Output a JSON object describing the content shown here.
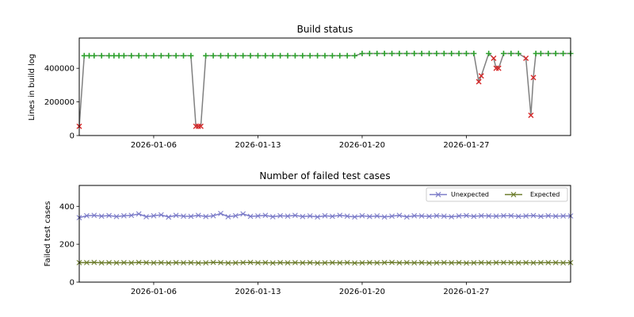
{
  "chart_data": [
    {
      "type": "line",
      "title": "Build status",
      "xlabel": "",
      "ylabel": "Lines in build log",
      "ylim": [
        0,
        580000
      ],
      "xlim": [
        "2026-01-01",
        "2026-02-03"
      ],
      "xticks": [
        "2026-01-06",
        "2026-01-13",
        "2026-01-20",
        "2026-01-27"
      ],
      "yticks": [
        0,
        200000,
        400000
      ],
      "ytick_labels": [
        "0",
        "200000",
        "400000"
      ],
      "grid": false,
      "legend": null,
      "line_color": "#808080",
      "status_colors": {
        "pass": "#2ca02c",
        "fail": "#d62728"
      },
      "series": [
        {
          "x": [
            "2026-01-01T00:00",
            "2026-01-01T08:00",
            "2026-01-01T16:00",
            "2026-01-02T00:00",
            "2026-01-02T12:00",
            "2026-01-03T00:00",
            "2026-01-03T08:00",
            "2026-01-03T16:00",
            "2026-01-04T00:00",
            "2026-01-04T12:00",
            "2026-01-05T00:00",
            "2026-01-05T12:00",
            "2026-01-06T00:00",
            "2026-01-06T12:00",
            "2026-01-07T00:00",
            "2026-01-07T12:00",
            "2026-01-08T00:00",
            "2026-01-08T12:00",
            "2026-01-08T20:00",
            "2026-01-09T00:00",
            "2026-01-09T04:00",
            "2026-01-09T12:00",
            "2026-01-10T00:00",
            "2026-01-10T12:00",
            "2026-01-11T00:00",
            "2026-01-11T12:00",
            "2026-01-12T00:00",
            "2026-01-12T12:00",
            "2026-01-13T00:00",
            "2026-01-13T12:00",
            "2026-01-14T00:00",
            "2026-01-14T12:00",
            "2026-01-15T00:00",
            "2026-01-15T12:00",
            "2026-01-16T00:00",
            "2026-01-16T12:00",
            "2026-01-17T00:00",
            "2026-01-17T12:00",
            "2026-01-18T00:00",
            "2026-01-18T12:00",
            "2026-01-19T00:00",
            "2026-01-19T12:00",
            "2026-01-20T00:00",
            "2026-01-20T12:00",
            "2026-01-21T00:00",
            "2026-01-21T12:00",
            "2026-01-22T00:00",
            "2026-01-22T12:00",
            "2026-01-23T00:00",
            "2026-01-23T12:00",
            "2026-01-24T00:00",
            "2026-01-24T12:00",
            "2026-01-25T00:00",
            "2026-01-25T12:00",
            "2026-01-26T00:00",
            "2026-01-26T12:00",
            "2026-01-27T00:00",
            "2026-01-27T12:00",
            "2026-01-27T20:00",
            "2026-01-28T00:00",
            "2026-01-28T12:00",
            "2026-01-28T20:00",
            "2026-01-29T00:00",
            "2026-01-29T04:00",
            "2026-01-29T12:00",
            "2026-01-30T00:00",
            "2026-01-30T12:00",
            "2026-01-31T00:00",
            "2026-01-31T08:00",
            "2026-01-31T12:00",
            "2026-01-31T16:00",
            "2026-02-01T00:00",
            "2026-02-01T12:00",
            "2026-02-02T00:00",
            "2026-02-02T12:00",
            "2026-02-03T00:00"
          ],
          "values": [
            55000,
            475000,
            475000,
            475000,
            475000,
            475000,
            475000,
            475000,
            475000,
            475000,
            475000,
            475000,
            475000,
            475000,
            475000,
            475000,
            475000,
            475000,
            55000,
            55000,
            55000,
            475000,
            475000,
            475000,
            475000,
            475000,
            475000,
            475000,
            475000,
            475000,
            475000,
            475000,
            475000,
            475000,
            475000,
            475000,
            475000,
            475000,
            475000,
            475000,
            475000,
            475000,
            488000,
            488000,
            488000,
            488000,
            488000,
            488000,
            488000,
            488000,
            488000,
            488000,
            488000,
            488000,
            488000,
            488000,
            488000,
            488000,
            320000,
            355000,
            488000,
            460000,
            400000,
            400000,
            488000,
            488000,
            488000,
            460000,
            120000,
            345000,
            488000,
            488000,
            488000,
            488000,
            488000,
            488000
          ],
          "status": [
            "fail",
            "pass",
            "pass",
            "pass",
            "pass",
            "pass",
            "pass",
            "pass",
            "pass",
            "pass",
            "pass",
            "pass",
            "pass",
            "pass",
            "pass",
            "pass",
            "pass",
            "pass",
            "fail",
            "fail",
            "fail",
            "pass",
            "pass",
            "pass",
            "pass",
            "pass",
            "pass",
            "pass",
            "pass",
            "pass",
            "pass",
            "pass",
            "pass",
            "pass",
            "pass",
            "pass",
            "pass",
            "pass",
            "pass",
            "pass",
            "pass",
            "pass",
            "pass",
            "pass",
            "pass",
            "pass",
            "pass",
            "pass",
            "pass",
            "pass",
            "pass",
            "pass",
            "pass",
            "pass",
            "pass",
            "pass",
            "pass",
            "pass",
            "fail",
            "fail",
            "pass",
            "fail",
            "fail",
            "fail",
            "pass",
            "pass",
            "pass",
            "fail",
            "fail",
            "fail",
            "pass",
            "pass",
            "pass",
            "pass",
            "pass",
            "pass"
          ]
        }
      ]
    },
    {
      "type": "line",
      "title": "Number of failed test cases",
      "xlabel": "",
      "ylabel": "Failed test cases",
      "ylim": [
        0,
        510
      ],
      "xlim": [
        "2026-01-01",
        "2026-02-03"
      ],
      "xticks": [
        "2026-01-06",
        "2026-01-13",
        "2026-01-20",
        "2026-01-27"
      ],
      "yticks": [
        0,
        200,
        400
      ],
      "ytick_labels": [
        "0",
        "200",
        "400"
      ],
      "grid": false,
      "legend": "top-right",
      "x": [
        "2026-01-01T00:00",
        "2026-01-01T12:00",
        "2026-01-02T00:00",
        "2026-01-02T12:00",
        "2026-01-03T00:00",
        "2026-01-03T12:00",
        "2026-01-04T00:00",
        "2026-01-04T12:00",
        "2026-01-05T00:00",
        "2026-01-05T12:00",
        "2026-01-06T00:00",
        "2026-01-06T12:00",
        "2026-01-07T00:00",
        "2026-01-07T12:00",
        "2026-01-08T00:00",
        "2026-01-08T12:00",
        "2026-01-09T00:00",
        "2026-01-09T12:00",
        "2026-01-10T00:00",
        "2026-01-10T12:00",
        "2026-01-11T00:00",
        "2026-01-11T12:00",
        "2026-01-12T00:00",
        "2026-01-12T12:00",
        "2026-01-13T00:00",
        "2026-01-13T12:00",
        "2026-01-14T00:00",
        "2026-01-14T12:00",
        "2026-01-15T00:00",
        "2026-01-15T12:00",
        "2026-01-16T00:00",
        "2026-01-16T12:00",
        "2026-01-17T00:00",
        "2026-01-17T12:00",
        "2026-01-18T00:00",
        "2026-01-18T12:00",
        "2026-01-19T00:00",
        "2026-01-19T12:00",
        "2026-01-20T00:00",
        "2026-01-20T12:00",
        "2026-01-21T00:00",
        "2026-01-21T12:00",
        "2026-01-22T00:00",
        "2026-01-22T12:00",
        "2026-01-23T00:00",
        "2026-01-23T12:00",
        "2026-01-24T00:00",
        "2026-01-24T12:00",
        "2026-01-25T00:00",
        "2026-01-25T12:00",
        "2026-01-26T00:00",
        "2026-01-26T12:00",
        "2026-01-27T00:00",
        "2026-01-27T12:00",
        "2026-01-28T00:00",
        "2026-01-28T12:00",
        "2026-01-29T00:00",
        "2026-01-29T12:00",
        "2026-01-30T00:00",
        "2026-01-30T12:00",
        "2026-01-31T00:00",
        "2026-01-31T12:00",
        "2026-02-01T00:00",
        "2026-02-01T12:00",
        "2026-02-02T00:00",
        "2026-02-02T12:00",
        "2026-02-03T00:00"
      ],
      "series": [
        {
          "name": "Unexpected",
          "color": "#7b7bc8",
          "marker": "x",
          "values": [
            340,
            350,
            352,
            348,
            351,
            346,
            350,
            352,
            360,
            345,
            350,
            355,
            343,
            352,
            348,
            347,
            352,
            346,
            350,
            362,
            345,
            350,
            360,
            347,
            349,
            352,
            345,
            350,
            348,
            352,
            346,
            349,
            344,
            350,
            347,
            352,
            348,
            344,
            350,
            346,
            349,
            344,
            348,
            352,
            344,
            350,
            349,
            347,
            350,
            348,
            345,
            349,
            351,
            347,
            350,
            349,
            348,
            350,
            350,
            347,
            349,
            351,
            347,
            350,
            348,
            349,
            349
          ]
        },
        {
          "name": "Expected",
          "color": "#6b7b2a",
          "marker": "x",
          "values": [
            103,
            103,
            104,
            102,
            103,
            102,
            103,
            102,
            104,
            103,
            102,
            103,
            101,
            103,
            102,
            103,
            101,
            102,
            104,
            103,
            101,
            102,
            103,
            104,
            102,
            103,
            101,
            103,
            102,
            103,
            102,
            103,
            101,
            102,
            103,
            102,
            103,
            101,
            102,
            103,
            102,
            103,
            104,
            102,
            103,
            102,
            103,
            101,
            102,
            103,
            102,
            103,
            101,
            102,
            103,
            102,
            103,
            103,
            103,
            102,
            103,
            102,
            103,
            103,
            103,
            102,
            103
          ]
        }
      ]
    }
  ]
}
